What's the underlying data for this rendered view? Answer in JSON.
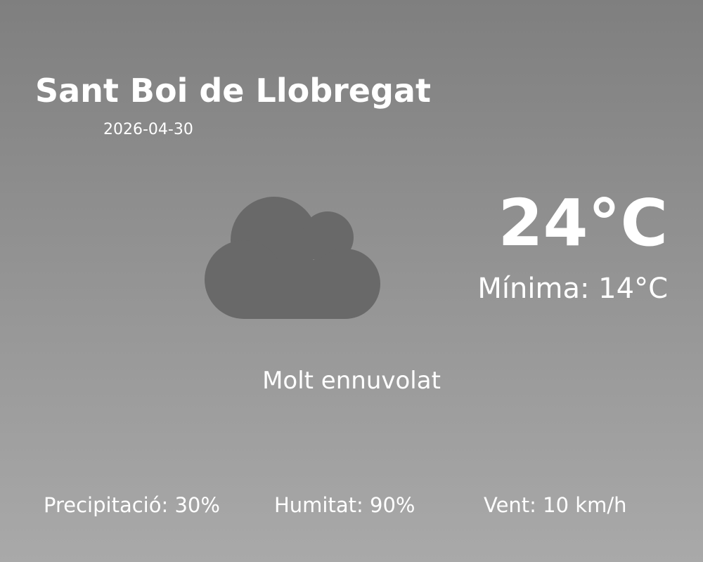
{
  "location": {
    "city": "Sant Boi de Llobregat",
    "date": "2026-04-30"
  },
  "current": {
    "temperature": "24°C",
    "minimum": "Mínima: 14°C",
    "condition": "Molt ennuvolat",
    "icon": "cloud-icon"
  },
  "stats": {
    "precipitation": "Precipitació: 30%",
    "humidity": "Humitat: 90%",
    "wind": "Vent: 10 km/h"
  },
  "colors": {
    "cloud": "#696969",
    "text": "#ffffff",
    "bg_top": "#7f7f7f",
    "bg_bottom": "#a9a9a9"
  }
}
